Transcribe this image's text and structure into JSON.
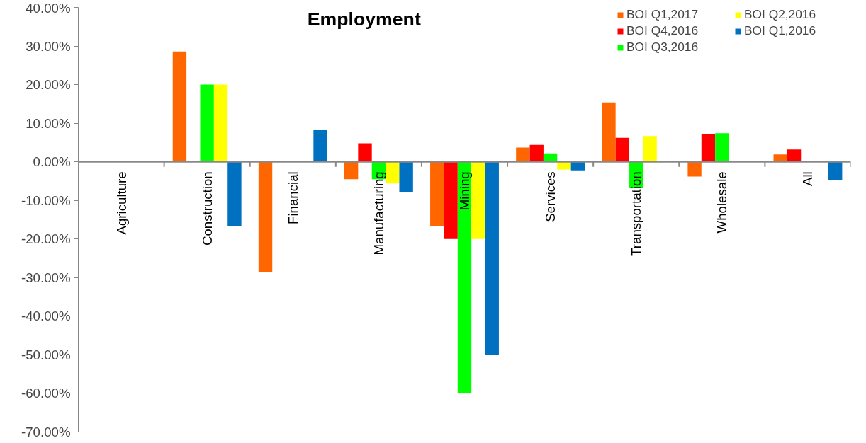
{
  "chart_data": {
    "type": "bar",
    "title": "Employment",
    "categories": [
      "Agriculture",
      "Construction",
      "Financial",
      "Manufacturing",
      "Mining",
      "Services",
      "Transportation",
      "Wholesale",
      "All"
    ],
    "series": [
      {
        "name": "BOI Q1,2017",
        "color": "#ff6600",
        "values": [
          null,
          28.6,
          -28.6,
          -4.5,
          -16.7,
          3.7,
          15.4,
          -3.8,
          1.9
        ]
      },
      {
        "name": "BOI Q4,2016",
        "color": "#ff0000",
        "values": [
          null,
          null,
          null,
          4.8,
          -20,
          4.4,
          6.2,
          7.1,
          3.2
        ]
      },
      {
        "name": "BOI Q3,2016",
        "color": "#00ff00",
        "values": [
          null,
          20,
          null,
          -4.5,
          -60,
          2.2,
          -6.7,
          7.4,
          null
        ]
      },
      {
        "name": "BOI Q2,2016",
        "color": "#ffff00",
        "values": [
          null,
          20,
          null,
          -5.6,
          -20,
          -2,
          6.7,
          null,
          null
        ]
      },
      {
        "name": "BOI Q1,2016",
        "color": "#0070c0",
        "values": [
          null,
          -16.7,
          8.3,
          -7.9,
          -50,
          -2.2,
          null,
          null,
          -4.8
        ]
      }
    ],
    "ylim": [
      -70,
      40
    ],
    "yticks": [
      {
        "value": -70,
        "label": "-70.00%"
      },
      {
        "value": -60,
        "label": "-60.00%"
      },
      {
        "value": -50,
        "label": "-50.00%"
      },
      {
        "value": -40,
        "label": "-40.00%"
      },
      {
        "value": -30,
        "label": "-30.00%"
      },
      {
        "value": -20,
        "label": "-20.00%"
      },
      {
        "value": -10,
        "label": "-10.00%"
      },
      {
        "value": 0,
        "label": "0.00%"
      },
      {
        "value": 10,
        "label": "10.00%"
      },
      {
        "value": 20,
        "label": "20.00%"
      },
      {
        "value": 30,
        "label": "30.00%"
      },
      {
        "value": 40,
        "label": "40.00%"
      }
    ],
    "legend": "top right",
    "grid": false
  }
}
